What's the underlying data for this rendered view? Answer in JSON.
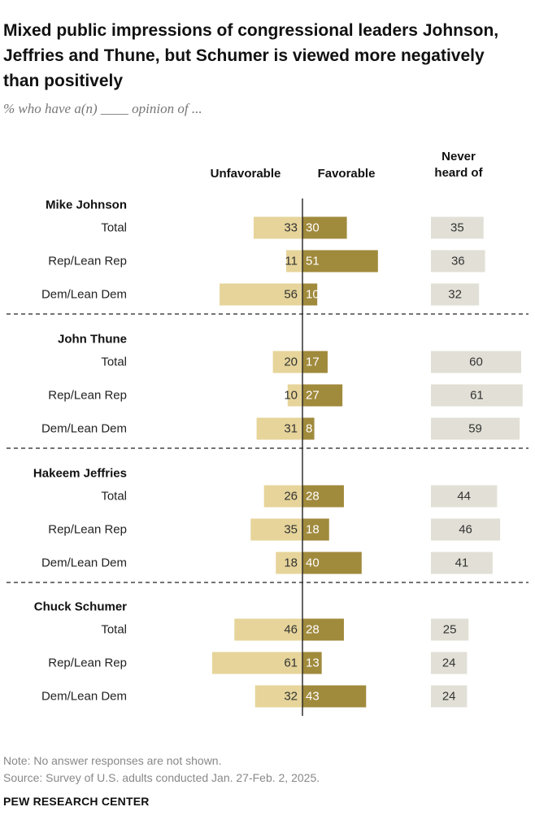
{
  "title": "Mixed public impressions of congressional leaders Johnson, Jeffries and Thune, but Schumer is viewed more negatively than positively",
  "subtitle": "% who have a(n) ____ opinion of ...",
  "columns": {
    "unfavorable": "Unfavorable",
    "favorable": "Favorable",
    "never_line1": "Never",
    "never_line2": "heard of"
  },
  "note": "Note: No answer responses are not shown.",
  "source": "Source: Survey of U.S. adults conducted Jan. 27-Feb. 2, 2025.",
  "brand": "PEW RESEARCH CENTER",
  "colors": {
    "unfavorable": "#e6d49a",
    "favorable": "#a08a3c",
    "never": "#e2e0d6"
  },
  "chart_data": {
    "type": "bar",
    "orientation": "diverging-horizontal",
    "groups": [
      {
        "name": "Mike Johnson",
        "rows": [
          {
            "label": "Total",
            "unfavorable": 33,
            "favorable": 30,
            "never_heard": 35
          },
          {
            "label": "Rep/Lean Rep",
            "unfavorable": 11,
            "favorable": 51,
            "never_heard": 36
          },
          {
            "label": "Dem/Lean Dem",
            "unfavorable": 56,
            "favorable": 10,
            "never_heard": 32
          }
        ]
      },
      {
        "name": "John Thune",
        "rows": [
          {
            "label": "Total",
            "unfavorable": 20,
            "favorable": 17,
            "never_heard": 60
          },
          {
            "label": "Rep/Lean Rep",
            "unfavorable": 10,
            "favorable": 27,
            "never_heard": 61
          },
          {
            "label": "Dem/Lean Dem",
            "unfavorable": 31,
            "favorable": 8,
            "never_heard": 59
          }
        ]
      },
      {
        "name": "Hakeem Jeffries",
        "rows": [
          {
            "label": "Total",
            "unfavorable": 26,
            "favorable": 28,
            "never_heard": 44
          },
          {
            "label": "Rep/Lean Rep",
            "unfavorable": 35,
            "favorable": 18,
            "never_heard": 46
          },
          {
            "label": "Dem/Lean Dem",
            "unfavorable": 18,
            "favorable": 40,
            "never_heard": 41
          }
        ]
      },
      {
        "name": "Chuck Schumer",
        "rows": [
          {
            "label": "Total",
            "unfavorable": 46,
            "favorable": 28,
            "never_heard": 25
          },
          {
            "label": "Rep/Lean Rep",
            "unfavorable": 61,
            "favorable": 13,
            "never_heard": 24
          },
          {
            "label": "Dem/Lean Dem",
            "unfavorable": 32,
            "favorable": 43,
            "never_heard": 24
          }
        ]
      }
    ]
  }
}
